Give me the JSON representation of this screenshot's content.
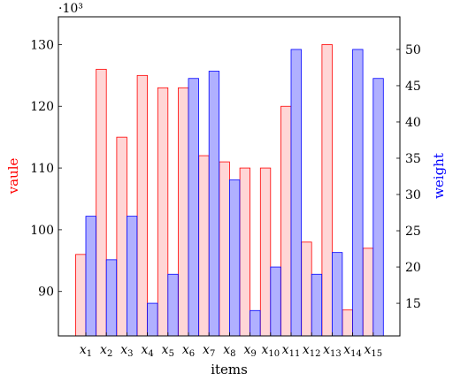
{
  "chart_data": {
    "type": "bar",
    "xlabel": "items",
    "ylabel_left": "vaule",
    "ylabel_right": "weight",
    "left_axis_multiplier": "·10³",
    "categories": [
      "x1",
      "x2",
      "x3",
      "x4",
      "x5",
      "x6",
      "x7",
      "x8",
      "x9",
      "x10",
      "x11",
      "x12",
      "x13",
      "x14",
      "x15"
    ],
    "category_labels": [
      {
        "base": "x",
        "sub": "1"
      },
      {
        "base": "x",
        "sub": "2"
      },
      {
        "base": "x",
        "sub": "3"
      },
      {
        "base": "x",
        "sub": "4"
      },
      {
        "base": "x",
        "sub": "5"
      },
      {
        "base": "x",
        "sub": "6"
      },
      {
        "base": "x",
        "sub": "7"
      },
      {
        "base": "x",
        "sub": "8"
      },
      {
        "base": "x",
        "sub": "9"
      },
      {
        "base": "x",
        "sub": "10"
      },
      {
        "base": "x",
        "sub": "11"
      },
      {
        "base": "x",
        "sub": "12"
      },
      {
        "base": "x",
        "sub": "13"
      },
      {
        "base": "x",
        "sub": "14"
      },
      {
        "base": "x",
        "sub": "15"
      }
    ],
    "series": [
      {
        "axis": "left",
        "color_stroke": "#ff0000",
        "color_fill": "#ffd6d6",
        "values": [
          96000,
          126000,
          115000,
          125000,
          123000,
          123000,
          112000,
          111000,
          110000,
          110000,
          120000,
          98000,
          130000,
          87000,
          97000
        ]
      },
      {
        "axis": "right",
        "color_stroke": "#0000ff",
        "color_fill": "#b0b0ff",
        "values": [
          27,
          21,
          27,
          15,
          19,
          46,
          47,
          32,
          14,
          20,
          50,
          19,
          22,
          50,
          46
        ]
      }
    ],
    "ylim_left": [
      82800,
      134500
    ],
    "ylim_right": [
      10.5,
      54.5
    ],
    "left_ticks": [
      90000,
      100000,
      110000,
      120000,
      130000
    ],
    "left_tick_labels": [
      "90",
      "100",
      "110",
      "120",
      "130"
    ],
    "right_ticks": [
      15,
      20,
      25,
      30,
      35,
      40,
      45,
      50
    ],
    "right_tick_labels": [
      "15",
      "20",
      "25",
      "30",
      "35",
      "40",
      "45",
      "50"
    ],
    "label_colors": {
      "left": "#ff0000",
      "right": "#0000ff"
    },
    "grid": false
  }
}
